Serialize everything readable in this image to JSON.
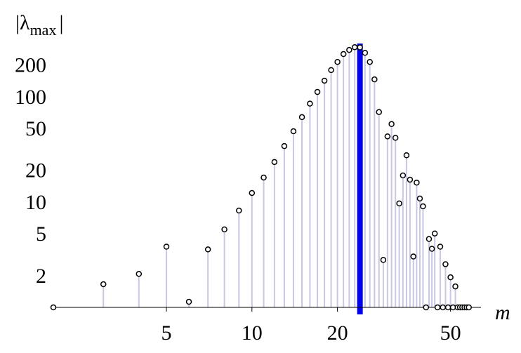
{
  "chart_data": {
    "type": "stem",
    "ylabel": {
      "main": "|λ",
      "sub": "max",
      "end": "|"
    },
    "xlabel": "m",
    "x": [
      2,
      3,
      4,
      5,
      6,
      7,
      8,
      9,
      10,
      11,
      12,
      13,
      14,
      15,
      16,
      17,
      18,
      19,
      20,
      21,
      22,
      23,
      24,
      25,
      26,
      27,
      28,
      29,
      30,
      31,
      32,
      33,
      34,
      35,
      36,
      37,
      38,
      39,
      40,
      41,
      42,
      43,
      44,
      45,
      46,
      47,
      48,
      49,
      50,
      51,
      52,
      53,
      54,
      55,
      56,
      57,
      58
    ],
    "values": [
      1,
      1.66,
      2.08,
      3.77,
      1.13,
      3.55,
      5.5,
      8.3,
      12.2,
      17.1,
      24,
      34,
      47,
      64,
      86,
      111,
      142,
      179,
      214,
      254,
      278,
      295,
      294,
      261,
      214,
      146,
      71.5,
      2.82,
      42,
      55,
      40.7,
      9.7,
      17.9,
      27.8,
      16.3,
      3.04,
      15.3,
      10.8,
      9.1,
      1,
      4.46,
      3.6,
      5.03,
      1,
      3.77,
      1,
      2.57,
      1,
      1.93,
      1,
      1.58,
      1,
      1,
      1,
      1,
      1,
      1
    ],
    "highlight_x": 24,
    "xlim": [
      2,
      64
    ],
    "ylim": [
      1,
      320
    ],
    "xticks": [
      5,
      10,
      20,
      50
    ],
    "yticks": [
      2,
      5,
      10,
      20,
      50,
      100,
      200
    ],
    "log_x": true,
    "log_y": true,
    "stem_color": "#c8c8e4",
    "marker_color": "#000000",
    "highlight_color": "#0000ee"
  }
}
